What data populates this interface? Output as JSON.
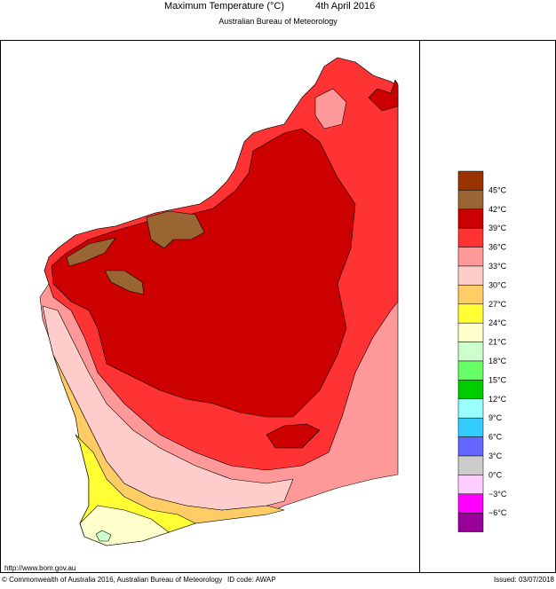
{
  "header": {
    "title": "Maximum Temperature (°C)",
    "date": "4th April 2016",
    "subtitle": "Australian Bureau of Meteorology"
  },
  "legend": {
    "boxes": [
      "#993300",
      "#996633",
      "#cc0000",
      "#ff3333",
      "#ff9999",
      "#ffcccc",
      "#ffcc66",
      "#ffff33",
      "#ffffcc",
      "#ccffcc",
      "#66ff66",
      "#00cc00",
      "#99ffff",
      "#33ccff",
      "#6666ff",
      "#cccccc",
      "#ffccff",
      "#ff00ff",
      "#990099"
    ],
    "labels": [
      "45°C",
      "42°C",
      "39°C",
      "36°C",
      "33°C",
      "30°C",
      "27°C",
      "24°C",
      "21°C",
      "18°C",
      "15°C",
      "12°C",
      "9°C",
      "6°C",
      "3°C",
      "0°C",
      "−3°C",
      "−6°C"
    ]
  },
  "footer": {
    "url": "http://www.bom.gov.au",
    "copyright": "© Commonwealth of Australia 2016, Australian Bureau of Meteorology",
    "id_code": "ID code: AWAP",
    "issued": "Issued: 03/07/2018"
  }
}
